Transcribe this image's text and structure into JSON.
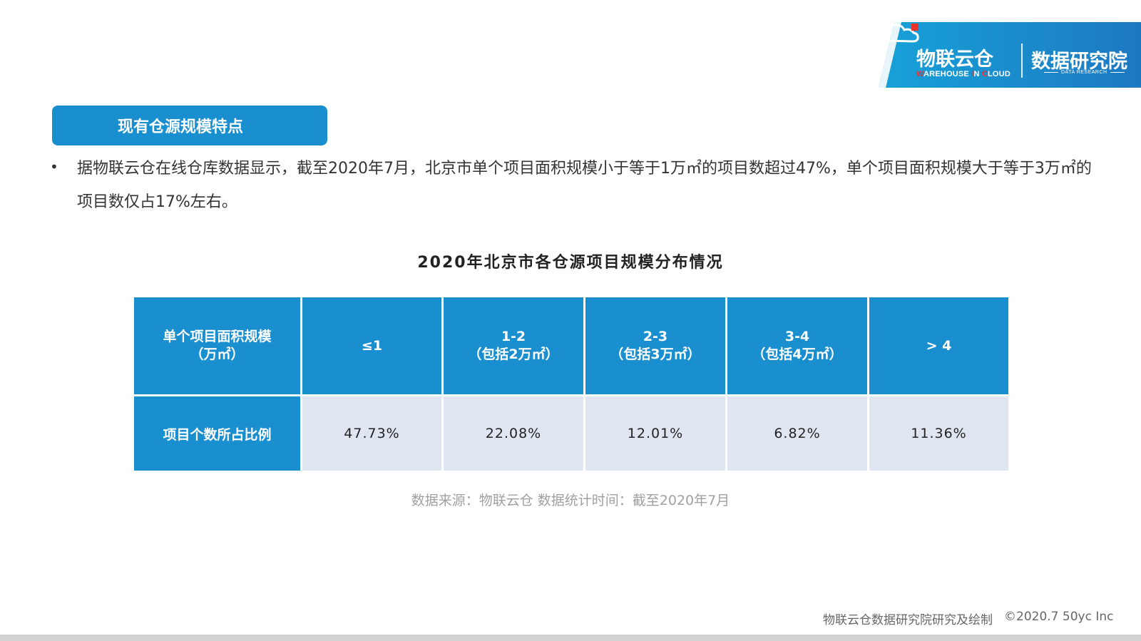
{
  "logo": {
    "brand_cn": "物联云仓",
    "brand_en_w": "W",
    "brand_en_1": "AREHOUSE ",
    "brand_en_i": "I",
    "brand_en_2": "N ",
    "brand_en_c": "C",
    "brand_en_3": "LOUD",
    "research_cn": "数据研究院",
    "research_en": "DATA RESEARCH",
    "colors": {
      "banner": "#1a8fd0",
      "accent_red": "#e8332d"
    }
  },
  "section": {
    "title": "现有仓源规模特点"
  },
  "bullet": {
    "text": "据物联云仓在线仓库数据显示，截至2020年7月，北京市单个项目面积规模小于等于1万㎡的项目数超过47%，单个项目面积规模大于等于3万㎡的项目数仅占17%左右。"
  },
  "table": {
    "title": "2020年北京市各仓源项目规模分布情况",
    "header": [
      {
        "line1": "单个项目面积规模",
        "line2": "（万㎡）"
      },
      {
        "line1": "≤1",
        "line2": ""
      },
      {
        "line1": "1-2",
        "line2": "（包括2万㎡）"
      },
      {
        "line1": "2-3",
        "line2": "（包括3万㎡）"
      },
      {
        "line1": "3-4",
        "line2": "（包括4万㎡）"
      },
      {
        "line1": "> 4",
        "line2": ""
      }
    ],
    "row_label": "项目个数所占比例",
    "values": [
      "47.73%",
      "22.08%",
      "12.01%",
      "6.82%",
      "11.36%"
    ],
    "colors": {
      "header_bg": "#1a8fd0",
      "value_bg": "#dfe6f1"
    }
  },
  "source_note": "数据来源：物联云仓 数据统计时间：截至2020年7月",
  "footer": {
    "credit": "物联云仓数据研究院研究及绘制",
    "copyright": "©2020.7 50yc Inc"
  }
}
